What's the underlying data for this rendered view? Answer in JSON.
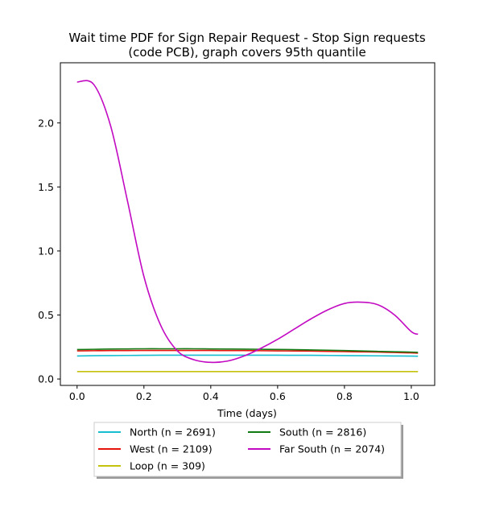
{
  "chart_data": {
    "type": "line",
    "title_line1": "Wait time PDF for Sign Repair Request - Stop Sign  requests",
    "title_line2": "(code PCB), graph covers 95th quantile",
    "xlabel": "Time (days)",
    "ylabel": "",
    "xlim": [
      -0.05,
      1.07
    ],
    "ylim": [
      -0.05,
      2.47
    ],
    "xticks": [
      0.0,
      0.2,
      0.4,
      0.6,
      0.8,
      1.0
    ],
    "xtick_labels": [
      "0.0",
      "0.2",
      "0.4",
      "0.6",
      "0.8",
      "1.0"
    ],
    "yticks": [
      0.0,
      0.5,
      1.0,
      1.5,
      2.0
    ],
    "ytick_labels": [
      "0.0",
      "0.5",
      "1.0",
      "1.5",
      "2.0"
    ],
    "grid": false,
    "legend_placement": "below",
    "x": [
      0.0,
      0.05,
      0.1,
      0.15,
      0.2,
      0.25,
      0.3,
      0.35,
      0.4,
      0.45,
      0.5,
      0.55,
      0.6,
      0.65,
      0.7,
      0.75,
      0.8,
      0.85,
      0.9,
      0.95,
      1.0,
      1.02
    ],
    "series": [
      {
        "name": "North (n = 2691)",
        "color": "#17becf",
        "values": [
          0.18,
          0.182,
          0.183,
          0.184,
          0.185,
          0.186,
          0.186,
          0.186,
          0.186,
          0.186,
          0.186,
          0.186,
          0.186,
          0.185,
          0.185,
          0.184,
          0.183,
          0.182,
          0.181,
          0.18,
          0.179,
          0.178
        ]
      },
      {
        "name": "West (n = 2109)",
        "color": "#e8120c",
        "values": [
          0.22,
          0.221,
          0.222,
          0.222,
          0.223,
          0.223,
          0.223,
          0.223,
          0.223,
          0.222,
          0.222,
          0.221,
          0.22,
          0.219,
          0.218,
          0.216,
          0.214,
          0.212,
          0.21,
          0.207,
          0.204,
          0.202
        ]
      },
      {
        "name": "Loop (n = 309)",
        "color": "#c5c20c",
        "values": [
          0.058,
          0.058,
          0.058,
          0.058,
          0.058,
          0.058,
          0.058,
          0.058,
          0.058,
          0.058,
          0.058,
          0.058,
          0.058,
          0.058,
          0.058,
          0.058,
          0.058,
          0.058,
          0.058,
          0.058,
          0.058,
          0.058
        ]
      },
      {
        "name": "South (n = 2816)",
        "color": "#127a12",
        "values": [
          0.23,
          0.232,
          0.234,
          0.235,
          0.236,
          0.236,
          0.236,
          0.236,
          0.235,
          0.234,
          0.233,
          0.232,
          0.231,
          0.229,
          0.227,
          0.225,
          0.222,
          0.219,
          0.216,
          0.213,
          0.21,
          0.208
        ]
      },
      {
        "name": "Far South (n = 2074)",
        "color": "#c20ac2",
        "values": [
          2.32,
          2.3,
          1.98,
          1.4,
          0.8,
          0.42,
          0.22,
          0.15,
          0.13,
          0.14,
          0.18,
          0.24,
          0.31,
          0.39,
          0.47,
          0.54,
          0.59,
          0.6,
          0.58,
          0.5,
          0.37,
          0.35
        ]
      }
    ]
  }
}
